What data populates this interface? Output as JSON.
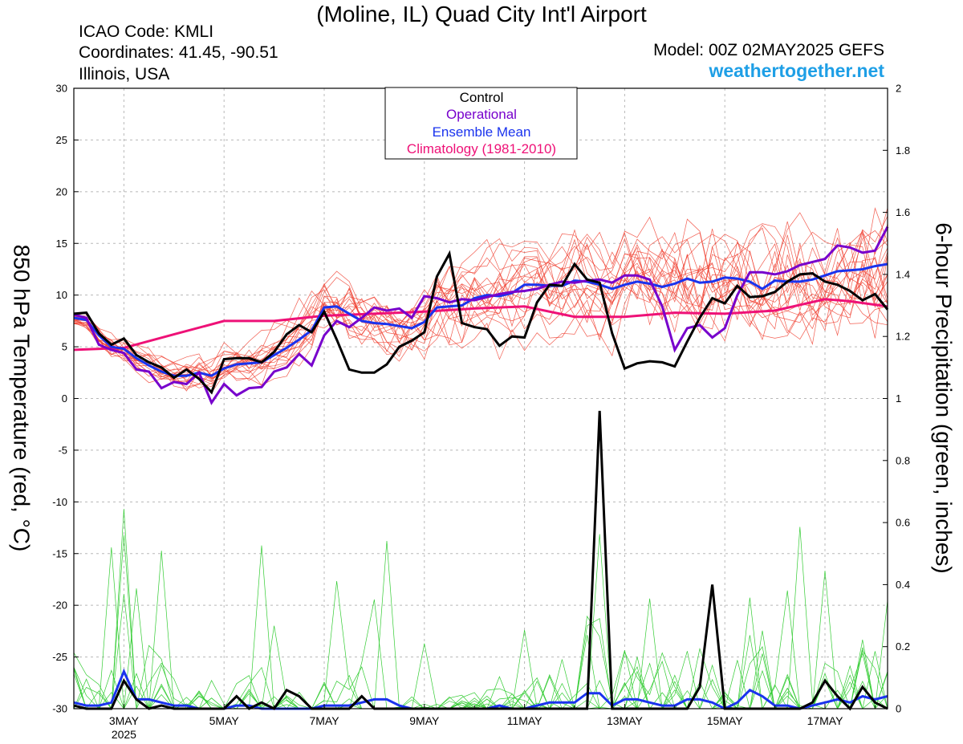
{
  "header": {
    "title": "(Moline, IL) Quad City Int'l Airport",
    "icao": "ICAO Code: KMLI",
    "coordinates": "Coordinates: 41.45, -90.51",
    "region": "Illinois, USA",
    "model": "Model: 00Z 02MAY2025 GEFS",
    "site": "weathertogether.net"
  },
  "colors": {
    "control": "#000000",
    "operational": "#7700cc",
    "ensemble_mean": "#1a33ee",
    "climatology": "#ee1177",
    "member_temp": "#f04030",
    "member_precip": "#33cc33"
  },
  "chart_data": {
    "type": "line",
    "ylabel": "850 hPa Temperature (red, °C)",
    "y2label": "6-hour Precipitation (green, inches)",
    "ylim": [
      -30,
      30
    ],
    "y2lim": [
      0,
      2
    ],
    "yticks": [
      "30",
      "25",
      "20",
      "15",
      "10",
      "5",
      "0",
      "-5",
      "-10",
      "-15",
      "-20",
      "-25",
      "-30"
    ],
    "y2ticks": [
      "2",
      "1.8",
      "1.6",
      "1.4",
      "1.2",
      "1",
      "0.8",
      "0.6",
      "0.4",
      "0.2",
      "0"
    ],
    "xlim": [
      2.0,
      18.25
    ],
    "xticks": [
      {
        "day": 3,
        "label": "3MAY",
        "sub": "2025"
      },
      {
        "day": 5,
        "label": "5MAY",
        "sub": ""
      },
      {
        "day": 7,
        "label": "7MAY",
        "sub": ""
      },
      {
        "day": 9,
        "label": "9MAY",
        "sub": ""
      },
      {
        "day": 11,
        "label": "11MAY",
        "sub": ""
      },
      {
        "day": 13,
        "label": "13MAY",
        "sub": ""
      },
      {
        "day": 15,
        "label": "15MAY",
        "sub": ""
      },
      {
        "day": 17,
        "label": "17MAY",
        "sub": ""
      }
    ],
    "grid": true,
    "legend": {
      "position": "top-center",
      "entries": [
        "Control",
        "Operational",
        "Ensemble Mean",
        "Climatology (1981-2010)"
      ]
    },
    "temperature": {
      "control": [
        [
          2.0,
          8.2
        ],
        [
          2.25,
          8.3
        ],
        [
          2.5,
          6.3
        ],
        [
          2.75,
          5.2
        ],
        [
          3.0,
          5.8
        ],
        [
          3.25,
          4.2
        ],
        [
          3.5,
          3.5
        ],
        [
          3.75,
          3.0
        ],
        [
          4.0,
          2.0
        ],
        [
          4.25,
          2.8
        ],
        [
          4.5,
          1.9
        ],
        [
          4.75,
          0.6
        ],
        [
          5.0,
          3.8
        ],
        [
          5.25,
          3.9
        ],
        [
          5.5,
          3.9
        ],
        [
          5.75,
          3.5
        ],
        [
          6.0,
          4.5
        ],
        [
          6.25,
          6.2
        ],
        [
          6.5,
          7.1
        ],
        [
          6.75,
          6.4
        ],
        [
          7.0,
          8.4
        ],
        [
          7.25,
          5.7
        ],
        [
          7.5,
          2.8
        ],
        [
          7.75,
          2.5
        ],
        [
          8.0,
          2.5
        ],
        [
          8.25,
          3.3
        ],
        [
          8.5,
          5.0
        ],
        [
          8.75,
          5.6
        ],
        [
          9.0,
          6.4
        ],
        [
          9.25,
          11.8
        ],
        [
          9.5,
          14.0
        ],
        [
          9.75,
          7.3
        ],
        [
          10.0,
          6.9
        ],
        [
          10.25,
          6.7
        ],
        [
          10.5,
          5.1
        ],
        [
          10.75,
          6.0
        ],
        [
          11.0,
          5.9
        ],
        [
          11.25,
          9.3
        ],
        [
          11.5,
          11.0
        ],
        [
          11.75,
          10.9
        ],
        [
          12.0,
          13.0
        ],
        [
          12.25,
          11.5
        ],
        [
          12.5,
          11.2
        ],
        [
          12.75,
          6.3
        ],
        [
          13.0,
          2.9
        ],
        [
          13.25,
          3.4
        ],
        [
          13.5,
          3.6
        ],
        [
          13.75,
          3.5
        ],
        [
          14.0,
          3.1
        ],
        [
          14.25,
          5.5
        ],
        [
          14.5,
          7.8
        ],
        [
          14.75,
          9.7
        ],
        [
          15.0,
          9.2
        ],
        [
          15.25,
          10.9
        ],
        [
          15.5,
          9.8
        ],
        [
          15.75,
          9.9
        ],
        [
          16.0,
          10.3
        ],
        [
          16.25,
          11.3
        ],
        [
          16.5,
          12.0
        ],
        [
          16.75,
          12.1
        ],
        [
          17.0,
          11.3
        ],
        [
          17.25,
          11.0
        ],
        [
          17.5,
          10.4
        ],
        [
          17.75,
          9.5
        ],
        [
          18.0,
          10.1
        ],
        [
          18.25,
          8.6
        ]
      ],
      "operational": [
        [
          2.0,
          8.1
        ],
        [
          2.25,
          7.8
        ],
        [
          2.5,
          5.2
        ],
        [
          2.75,
          4.7
        ],
        [
          3.0,
          4.4
        ],
        [
          3.25,
          2.8
        ],
        [
          3.5,
          2.6
        ],
        [
          3.75,
          1.0
        ],
        [
          4.0,
          1.6
        ],
        [
          4.25,
          1.4
        ],
        [
          4.5,
          2.5
        ],
        [
          4.75,
          -0.4
        ],
        [
          5.0,
          1.4
        ],
        [
          5.25,
          0.3
        ],
        [
          5.5,
          1.0
        ],
        [
          5.75,
          1.1
        ],
        [
          6.0,
          2.6
        ],
        [
          6.25,
          3.0
        ],
        [
          6.5,
          4.3
        ],
        [
          6.75,
          3.2
        ],
        [
          7.0,
          6.1
        ],
        [
          7.25,
          7.5
        ],
        [
          7.5,
          6.9
        ],
        [
          7.75,
          7.8
        ],
        [
          8.0,
          8.8
        ],
        [
          8.25,
          8.5
        ],
        [
          8.5,
          8.7
        ],
        [
          8.75,
          7.8
        ],
        [
          9.0,
          9.9
        ],
        [
          9.25,
          9.7
        ],
        [
          9.5,
          9.3
        ],
        [
          9.75,
          9.6
        ],
        [
          10.0,
          9.5
        ],
        [
          10.25,
          9.8
        ],
        [
          10.5,
          10.1
        ],
        [
          10.75,
          10.3
        ],
        [
          11.0,
          10.4
        ],
        [
          11.25,
          10.6
        ],
        [
          11.5,
          11.0
        ],
        [
          11.75,
          11.3
        ],
        [
          12.0,
          11.2
        ],
        [
          12.25,
          11.4
        ],
        [
          12.5,
          11.5
        ],
        [
          12.75,
          11.2
        ],
        [
          13.0,
          11.9
        ],
        [
          13.25,
          11.9
        ],
        [
          13.5,
          11.5
        ],
        [
          13.75,
          8.9
        ],
        [
          14.0,
          4.7
        ],
        [
          14.25,
          6.8
        ],
        [
          14.5,
          7.1
        ],
        [
          14.75,
          5.9
        ],
        [
          15.0,
          6.8
        ],
        [
          15.25,
          10.0
        ],
        [
          15.5,
          12.2
        ],
        [
          15.75,
          12.2
        ],
        [
          16.0,
          12.0
        ],
        [
          16.25,
          12.3
        ],
        [
          16.5,
          12.9
        ],
        [
          16.75,
          13.2
        ],
        [
          17.0,
          13.5
        ],
        [
          17.25,
          14.8
        ],
        [
          17.5,
          14.6
        ],
        [
          17.75,
          14.1
        ],
        [
          18.0,
          14.3
        ],
        [
          18.25,
          16.6
        ]
      ],
      "ensemble_mean": [
        [
          2.0,
          7.8
        ],
        [
          2.25,
          7.6
        ],
        [
          2.5,
          6.1
        ],
        [
          2.75,
          5.0
        ],
        [
          3.0,
          4.8
        ],
        [
          3.25,
          3.9
        ],
        [
          3.5,
          3.2
        ],
        [
          3.75,
          2.6
        ],
        [
          4.0,
          2.2
        ],
        [
          4.25,
          2.2
        ],
        [
          4.5,
          2.5
        ],
        [
          4.75,
          2.2
        ],
        [
          5.0,
          2.9
        ],
        [
          5.25,
          3.3
        ],
        [
          5.5,
          3.4
        ],
        [
          5.75,
          3.5
        ],
        [
          6.0,
          4.2
        ],
        [
          6.25,
          4.9
        ],
        [
          6.5,
          5.7
        ],
        [
          6.75,
          6.6
        ],
        [
          7.0,
          8.8
        ],
        [
          7.25,
          8.9
        ],
        [
          7.5,
          8.2
        ],
        [
          7.75,
          7.5
        ],
        [
          8.0,
          7.3
        ],
        [
          8.25,
          7.2
        ],
        [
          8.5,
          7.0
        ],
        [
          8.75,
          6.8
        ],
        [
          9.0,
          7.4
        ],
        [
          9.25,
          8.8
        ],
        [
          9.5,
          8.9
        ],
        [
          9.75,
          9.0
        ],
        [
          10.0,
          9.7
        ],
        [
          10.25,
          10.0
        ],
        [
          10.5,
          9.9
        ],
        [
          10.75,
          10.2
        ],
        [
          11.0,
          11.0
        ],
        [
          11.25,
          11.0
        ],
        [
          11.5,
          10.9
        ],
        [
          11.75,
          10.9
        ],
        [
          12.0,
          11.4
        ],
        [
          12.25,
          11.3
        ],
        [
          12.5,
          11.0
        ],
        [
          12.75,
          10.6
        ],
        [
          13.0,
          11.0
        ],
        [
          13.25,
          11.3
        ],
        [
          13.5,
          11.1
        ],
        [
          13.75,
          10.8
        ],
        [
          14.0,
          11.1
        ],
        [
          14.25,
          11.6
        ],
        [
          14.5,
          11.2
        ],
        [
          14.75,
          11.3
        ],
        [
          15.0,
          11.7
        ],
        [
          15.25,
          11.6
        ],
        [
          15.5,
          11.3
        ],
        [
          15.75,
          10.6
        ],
        [
          16.0,
          11.4
        ],
        [
          16.25,
          11.3
        ],
        [
          16.5,
          11.3
        ],
        [
          16.75,
          11.5
        ],
        [
          17.0,
          11.9
        ],
        [
          17.25,
          12.3
        ],
        [
          17.5,
          12.4
        ],
        [
          17.75,
          12.5
        ],
        [
          18.0,
          12.8
        ],
        [
          18.25,
          13.0
        ]
      ],
      "climatology": [
        [
          2.0,
          4.7
        ],
        [
          3.0,
          4.9
        ],
        [
          4.0,
          6.2
        ],
        [
          5.0,
          7.5
        ],
        [
          6.0,
          7.5
        ],
        [
          7.0,
          8.0
        ],
        [
          8.0,
          8.2
        ],
        [
          9.0,
          8.4
        ],
        [
          10.0,
          8.7
        ],
        [
          11.0,
          8.9
        ],
        [
          12.0,
          7.9
        ],
        [
          13.0,
          7.9
        ],
        [
          14.0,
          8.3
        ],
        [
          15.0,
          8.2
        ],
        [
          16.0,
          8.5
        ],
        [
          17.0,
          9.6
        ],
        [
          17.5,
          9.4
        ],
        [
          18.25,
          8.9
        ]
      ]
    },
    "precipitation": {
      "control": [
        [
          2.0,
          0.01
        ],
        [
          2.25,
          0.0
        ],
        [
          2.5,
          0.0
        ],
        [
          2.75,
          0.0
        ],
        [
          3.0,
          0.09
        ],
        [
          3.25,
          0.03
        ],
        [
          3.5,
          0.0
        ],
        [
          3.75,
          0.01
        ],
        [
          4.0,
          0.0
        ],
        [
          4.25,
          0.0
        ],
        [
          4.5,
          0.0
        ],
        [
          4.75,
          0.0
        ],
        [
          5.0,
          0.0
        ],
        [
          5.25,
          0.04
        ],
        [
          5.5,
          0.0
        ],
        [
          5.75,
          0.02
        ],
        [
          6.0,
          0.0
        ],
        [
          6.25,
          0.06
        ],
        [
          6.5,
          0.04
        ],
        [
          6.75,
          0.0
        ],
        [
          7.0,
          0.0
        ],
        [
          7.25,
          0.0
        ],
        [
          7.5,
          0.0
        ],
        [
          7.75,
          0.04
        ],
        [
          8.0,
          0.0
        ],
        [
          9.0,
          0.0
        ],
        [
          10.0,
          0.0
        ],
        [
          11.0,
          0.0
        ],
        [
          12.0,
          0.0
        ],
        [
          12.25,
          0.0
        ],
        [
          12.5,
          0.96
        ],
        [
          12.75,
          0.0
        ],
        [
          13.0,
          0.0
        ],
        [
          14.0,
          0.0
        ],
        [
          14.25,
          0.0
        ],
        [
          14.5,
          0.07
        ],
        [
          14.75,
          0.4
        ],
        [
          15.0,
          0.0
        ],
        [
          15.25,
          0.0
        ],
        [
          16.0,
          0.0
        ],
        [
          16.25,
          0.0
        ],
        [
          16.5,
          0.0
        ],
        [
          16.75,
          0.02
        ],
        [
          17.0,
          0.09
        ],
        [
          17.25,
          0.04
        ],
        [
          17.5,
          0.0
        ],
        [
          17.75,
          0.07
        ],
        [
          18.0,
          0.02
        ],
        [
          18.25,
          0.0
        ]
      ],
      "ensemble_mean": [
        [
          2.0,
          0.02
        ],
        [
          2.25,
          0.01
        ],
        [
          2.5,
          0.01
        ],
        [
          2.75,
          0.02
        ],
        [
          3.0,
          0.12
        ],
        [
          3.25,
          0.03
        ],
        [
          3.5,
          0.03
        ],
        [
          3.75,
          0.02
        ],
        [
          4.0,
          0.01
        ],
        [
          4.25,
          0.01
        ],
        [
          4.5,
          0.0
        ],
        [
          4.75,
          0.0
        ],
        [
          5.0,
          0.0
        ],
        [
          5.25,
          0.01
        ],
        [
          5.5,
          0.01
        ],
        [
          5.75,
          0.0
        ],
        [
          6.0,
          0.0
        ],
        [
          6.25,
          0.0
        ],
        [
          6.5,
          0.0
        ],
        [
          6.75,
          0.0
        ],
        [
          7.0,
          0.01
        ],
        [
          7.25,
          0.01
        ],
        [
          7.5,
          0.01
        ],
        [
          7.75,
          0.02
        ],
        [
          8.0,
          0.03
        ],
        [
          8.25,
          0.03
        ],
        [
          8.5,
          0.01
        ],
        [
          8.75,
          0.0
        ],
        [
          9.0,
          0.0
        ],
        [
          9.25,
          0.0
        ],
        [
          9.5,
          0.0
        ],
        [
          9.75,
          0.0
        ],
        [
          10.0,
          0.0
        ],
        [
          10.25,
          0.0
        ],
        [
          10.5,
          0.01
        ],
        [
          10.75,
          0.0
        ],
        [
          11.0,
          0.0
        ],
        [
          11.25,
          0.01
        ],
        [
          11.5,
          0.02
        ],
        [
          11.75,
          0.02
        ],
        [
          12.0,
          0.02
        ],
        [
          12.25,
          0.05
        ],
        [
          12.5,
          0.05
        ],
        [
          12.75,
          0.01
        ],
        [
          13.0,
          0.03
        ],
        [
          13.25,
          0.03
        ],
        [
          13.5,
          0.02
        ],
        [
          13.75,
          0.01
        ],
        [
          14.0,
          0.01
        ],
        [
          14.25,
          0.03
        ],
        [
          14.5,
          0.03
        ],
        [
          14.75,
          0.02
        ],
        [
          15.0,
          0.0
        ],
        [
          15.25,
          0.02
        ],
        [
          15.5,
          0.06
        ],
        [
          15.75,
          0.04
        ],
        [
          16.0,
          0.01
        ],
        [
          16.25,
          0.01
        ],
        [
          16.5,
          0.0
        ],
        [
          16.75,
          0.01
        ],
        [
          17.0,
          0.02
        ],
        [
          17.25,
          0.03
        ],
        [
          17.5,
          0.02
        ],
        [
          17.75,
          0.04
        ],
        [
          18.0,
          0.03
        ],
        [
          18.25,
          0.04
        ]
      ]
    }
  }
}
